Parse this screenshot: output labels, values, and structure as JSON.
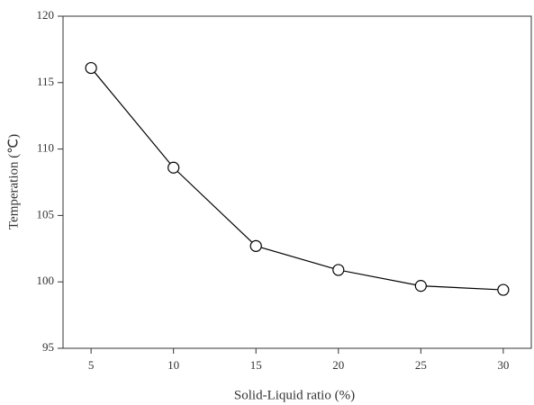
{
  "chart_data": {
    "type": "line",
    "x_label": "Solid-Liquid ratio (%)",
    "y_label": "Temperation (℃)",
    "x": [
      5,
      10,
      15,
      20,
      25,
      30
    ],
    "series": [
      {
        "color": "#000000",
        "values": [
          116.1,
          108.6,
          102.7,
          100.9,
          99.7,
          99.4
        ]
      }
    ],
    "xlim": [
      3.3,
      31.7
    ],
    "xticks": [
      5,
      10,
      15,
      20,
      25,
      30
    ],
    "ylim": [
      95,
      120
    ],
    "yticks": [
      95,
      100,
      105,
      110,
      115,
      120
    ],
    "grid": false
  }
}
